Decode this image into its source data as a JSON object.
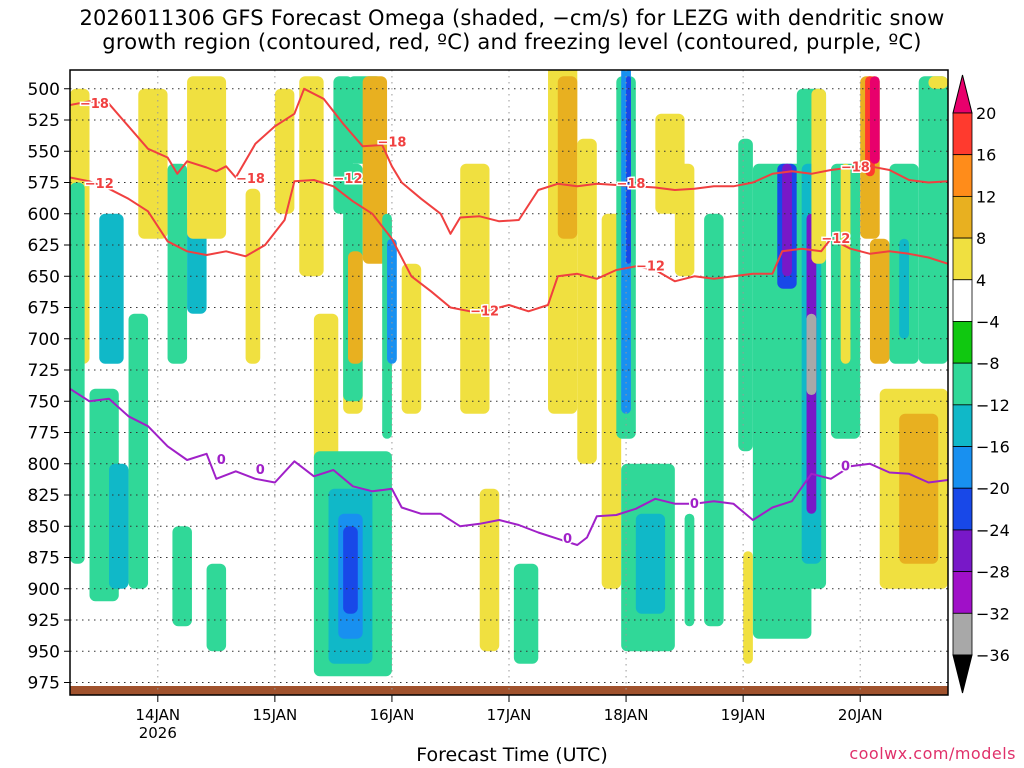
{
  "chart_data": {
    "type": "time-height",
    "title_line1": "2026011306 GFS Forecast Omega (shaded, −cm/s) for LEZG with dendritic snow",
    "title_line2": "growth region (contoured, red, ºC) and freezing level (contoured, purple, ºC)",
    "xlabel": "Forecast Time (UTC)",
    "credit": "coolwx.com/models",
    "x_range_hours": [
      0,
      180
    ],
    "x_ticks": [
      {
        "label": "14JAN",
        "hour": 18,
        "sublabel": "2026"
      },
      {
        "label": "15JAN",
        "hour": 42,
        "sublabel": ""
      },
      {
        "label": "16JAN",
        "hour": 66,
        "sublabel": ""
      },
      {
        "label": "17JAN",
        "hour": 90,
        "sublabel": ""
      },
      {
        "label": "18JAN",
        "hour": 114,
        "sublabel": ""
      },
      {
        "label": "19JAN",
        "hour": 138,
        "sublabel": ""
      },
      {
        "label": "20JAN",
        "hour": 162,
        "sublabel": ""
      }
    ],
    "y_range_hpa": [
      985,
      485
    ],
    "y_ticks": [
      500,
      525,
      550,
      575,
      600,
      625,
      650,
      675,
      700,
      725,
      750,
      775,
      800,
      825,
      850,
      875,
      900,
      925,
      950,
      975
    ],
    "colorbar": {
      "labels": [
        "20",
        "16",
        "12",
        "8",
        "4",
        "−4",
        "−8",
        "−12",
        "−16",
        "−20",
        "−24",
        "−28",
        "−32",
        "−36"
      ],
      "colors": [
        "#e8006c",
        "#ff3a2e",
        "#ff8c1a",
        "#e8b020",
        "#f0e040",
        "#ffffff",
        "#10c810",
        "#30d898",
        "#10b8c8",
        "#1890f0",
        "#1848e8",
        "#7818c8",
        "#a010c8",
        "#a8a8a8",
        "#000000"
      ]
    },
    "omega_cells": [
      {
        "h0": 0,
        "h1": 4,
        "p0": 500,
        "p1": 720,
        "v": 6
      },
      {
        "h0": 0,
        "h1": 3,
        "p0": 575,
        "p1": 880,
        "v": -8
      },
      {
        "h0": 4,
        "h1": 10,
        "p0": 740,
        "p1": 910,
        "v": -10
      },
      {
        "h0": 6,
        "h1": 11,
        "p0": 600,
        "p1": 720,
        "v": -12
      },
      {
        "h0": 8,
        "h1": 12,
        "p0": 800,
        "p1": 900,
        "v": -14
      },
      {
        "h0": 12,
        "h1": 16,
        "p0": 680,
        "p1": 900,
        "v": -8
      },
      {
        "h0": 14,
        "h1": 20,
        "p0": 500,
        "p1": 620,
        "v": 6
      },
      {
        "h0": 20,
        "h1": 24,
        "p0": 560,
        "p1": 720,
        "v": -8
      },
      {
        "h0": 24,
        "h1": 28,
        "p0": 600,
        "p1": 680,
        "v": -12
      },
      {
        "h0": 21,
        "h1": 25,
        "p0": 850,
        "p1": 930,
        "v": -8
      },
      {
        "h0": 24,
        "h1": 32,
        "p0": 490,
        "p1": 620,
        "v": 6
      },
      {
        "h0": 28,
        "h1": 32,
        "p0": 880,
        "p1": 950,
        "v": -8
      },
      {
        "h0": 36,
        "h1": 39,
        "p0": 580,
        "p1": 720,
        "v": 6
      },
      {
        "h0": 42,
        "h1": 46,
        "p0": 500,
        "p1": 600,
        "v": 6
      },
      {
        "h0": 47,
        "h1": 52,
        "p0": 490,
        "p1": 650,
        "v": 6
      },
      {
        "h0": 50,
        "h1": 55,
        "p0": 680,
        "p1": 800,
        "v": 6
      },
      {
        "h0": 54,
        "h1": 58,
        "p0": 490,
        "p1": 600,
        "v": -8
      },
      {
        "h0": 56,
        "h1": 60,
        "p0": 600,
        "p1": 760,
        "v": 6
      },
      {
        "h0": 57,
        "h1": 64,
        "p0": 490,
        "p1": 560,
        "v": -8
      },
      {
        "h0": 56,
        "h1": 60,
        "p0": 560,
        "p1": 750,
        "v": -8
      },
      {
        "h0": 57,
        "h1": 60,
        "p0": 630,
        "p1": 720,
        "v": 10
      },
      {
        "h0": 60,
        "h1": 65,
        "p0": 490,
        "p1": 640,
        "v": 10
      },
      {
        "h0": 64,
        "h1": 66,
        "p0": 600,
        "p1": 780,
        "v": -8
      },
      {
        "h0": 65,
        "h1": 67,
        "p0": 620,
        "p1": 720,
        "v": -16
      },
      {
        "h0": 68,
        "h1": 72,
        "p0": 640,
        "p1": 760,
        "v": 6
      },
      {
        "h0": 50,
        "h1": 66,
        "p0": 790,
        "p1": 970,
        "v": -8
      },
      {
        "h0": 53,
        "h1": 62,
        "p0": 820,
        "p1": 960,
        "v": -12
      },
      {
        "h0": 55,
        "h1": 60,
        "p0": 840,
        "p1": 940,
        "v": -16
      },
      {
        "h0": 56,
        "h1": 59,
        "p0": 850,
        "p1": 920,
        "v": -22
      },
      {
        "h0": 80,
        "h1": 86,
        "p0": 560,
        "p1": 760,
        "v": 6
      },
      {
        "h0": 84,
        "h1": 88,
        "p0": 820,
        "p1": 950,
        "v": 6
      },
      {
        "h0": 91,
        "h1": 96,
        "p0": 880,
        "p1": 960,
        "v": -8
      },
      {
        "h0": 98,
        "h1": 104,
        "p0": 480,
        "p1": 760,
        "v": 6
      },
      {
        "h0": 100,
        "h1": 104,
        "p0": 490,
        "p1": 620,
        "v": 10
      },
      {
        "h0": 104,
        "h1": 108,
        "p0": 540,
        "p1": 800,
        "v": 6
      },
      {
        "h0": 109,
        "h1": 113,
        "p0": 600,
        "p1": 900,
        "v": 6
      },
      {
        "h0": 112,
        "h1": 116,
        "p0": 490,
        "p1": 780,
        "v": -8
      },
      {
        "h0": 113,
        "h1": 115,
        "p0": 480,
        "p1": 760,
        "v": -16
      },
      {
        "h0": 114,
        "h1": 115,
        "p0": 490,
        "p1": 640,
        "v": -22
      },
      {
        "h0": 113,
        "h1": 124,
        "p0": 800,
        "p1": 950,
        "v": -8
      },
      {
        "h0": 116,
        "h1": 122,
        "p0": 840,
        "p1": 920,
        "v": -12
      },
      {
        "h0": 120,
        "h1": 126,
        "p0": 520,
        "p1": 600,
        "v": 6
      },
      {
        "h0": 124,
        "h1": 128,
        "p0": 560,
        "p1": 650,
        "v": 6
      },
      {
        "h0": 126,
        "h1": 128,
        "p0": 840,
        "p1": 930,
        "v": -8
      },
      {
        "h0": 130,
        "h1": 134,
        "p0": 600,
        "p1": 930,
        "v": -8
      },
      {
        "h0": 137,
        "h1": 140,
        "p0": 540,
        "p1": 790,
        "v": -8
      },
      {
        "h0": 138,
        "h1": 140,
        "p0": 870,
        "p1": 960,
        "v": 6
      },
      {
        "h0": 140,
        "h1": 152,
        "p0": 560,
        "p1": 940,
        "v": -8
      },
      {
        "h0": 142,
        "h1": 150,
        "p0": 600,
        "p1": 820,
        "v": -10
      },
      {
        "h0": 145,
        "h1": 149,
        "p0": 560,
        "p1": 660,
        "v": -20
      },
      {
        "h0": 146,
        "h1": 148,
        "p0": 560,
        "p1": 650,
        "v": -26
      },
      {
        "h0": 149,
        "h1": 155,
        "p0": 500,
        "p1": 900,
        "v": -8
      },
      {
        "h0": 150,
        "h1": 154,
        "p0": 560,
        "p1": 880,
        "v": -12
      },
      {
        "h0": 151,
        "h1": 153,
        "p0": 600,
        "p1": 840,
        "v": -26
      },
      {
        "h0": 151,
        "h1": 153,
        "p0": 680,
        "p1": 745,
        "v": -34
      },
      {
        "h0": 152,
        "h1": 155,
        "p0": 500,
        "p1": 640,
        "v": 6
      },
      {
        "h0": 156,
        "h1": 162,
        "p0": 560,
        "p1": 780,
        "v": -8
      },
      {
        "h0": 158,
        "h1": 160,
        "p0": 560,
        "p1": 720,
        "v": 6
      },
      {
        "h0": 162,
        "h1": 166,
        "p0": 490,
        "p1": 620,
        "v": 10
      },
      {
        "h0": 163,
        "h1": 165,
        "p0": 490,
        "p1": 570,
        "v": 18
      },
      {
        "h0": 164,
        "h1": 166,
        "p0": 490,
        "p1": 560,
        "v": 22
      },
      {
        "h0": 164,
        "h1": 168,
        "p0": 620,
        "p1": 720,
        "v": 10
      },
      {
        "h0": 168,
        "h1": 174,
        "p0": 560,
        "p1": 720,
        "v": -8
      },
      {
        "h0": 170,
        "h1": 172,
        "p0": 620,
        "p1": 700,
        "v": -12
      },
      {
        "h0": 174,
        "h1": 180,
        "p0": 490,
        "p1": 720,
        "v": -8
      },
      {
        "h0": 166,
        "h1": 180,
        "p0": 740,
        "p1": 900,
        "v": 6
      },
      {
        "h0": 170,
        "h1": 178,
        "p0": 760,
        "p1": 880,
        "v": 10
      },
      {
        "h0": 176,
        "h1": 180,
        "p0": 490,
        "p1": 500,
        "v": 6
      }
    ],
    "contours": [
      {
        "name": "dgz-upper",
        "level": "−18",
        "color": "#f04040",
        "points": [
          [
            0,
            513
          ],
          [
            4,
            510
          ],
          [
            8,
            512
          ],
          [
            12,
            530
          ],
          [
            16,
            548
          ],
          [
            20,
            555
          ],
          [
            22,
            568
          ],
          [
            24,
            558
          ],
          [
            28,
            563
          ],
          [
            30,
            566
          ],
          [
            32,
            562
          ],
          [
            34,
            571
          ],
          [
            38,
            544
          ],
          [
            42,
            530
          ],
          [
            46,
            520
          ],
          [
            48,
            500
          ],
          [
            52,
            508
          ],
          [
            56,
            528
          ],
          [
            60,
            546
          ],
          [
            64,
            545
          ],
          [
            66,
            562
          ],
          [
            68,
            575
          ],
          [
            72,
            588
          ],
          [
            76,
            600
          ],
          [
            78,
            616
          ],
          [
            80,
            603
          ],
          [
            84,
            602
          ],
          [
            88,
            606
          ],
          [
            92,
            605
          ],
          [
            96,
            581
          ],
          [
            100,
            576
          ],
          [
            104,
            578
          ],
          [
            108,
            576
          ],
          [
            112,
            577
          ],
          [
            116,
            578
          ],
          [
            120,
            579
          ],
          [
            124,
            581
          ],
          [
            128,
            580
          ],
          [
            132,
            578
          ],
          [
            136,
            578
          ],
          [
            140,
            575
          ],
          [
            144,
            568
          ],
          [
            148,
            566
          ],
          [
            152,
            568
          ],
          [
            156,
            565
          ],
          [
            160,
            563
          ],
          [
            164,
            562
          ],
          [
            168,
            565
          ],
          [
            172,
            573
          ],
          [
            176,
            575
          ],
          [
            180,
            574
          ]
        ],
        "labels": [
          {
            "h": 5,
            "p": 512
          },
          {
            "h": 37,
            "p": 572
          },
          {
            "h": 66,
            "p": 543
          },
          {
            "h": 115,
            "p": 576
          },
          {
            "h": 161,
            "p": 563
          }
        ]
      },
      {
        "name": "dgz-lower",
        "level": "−12",
        "color": "#f04040",
        "points": [
          [
            0,
            571
          ],
          [
            4,
            574
          ],
          [
            8,
            580
          ],
          [
            12,
            588
          ],
          [
            16,
            598
          ],
          [
            20,
            622
          ],
          [
            24,
            630
          ],
          [
            28,
            633
          ],
          [
            32,
            630
          ],
          [
            36,
            634
          ],
          [
            40,
            625
          ],
          [
            44,
            605
          ],
          [
            46,
            574
          ],
          [
            50,
            573
          ],
          [
            54,
            578
          ],
          [
            58,
            590
          ],
          [
            62,
            600
          ],
          [
            66,
            620
          ],
          [
            70,
            650
          ],
          [
            74,
            662
          ],
          [
            78,
            675
          ],
          [
            82,
            678
          ],
          [
            86,
            677
          ],
          [
            90,
            673
          ],
          [
            94,
            678
          ],
          [
            98,
            673
          ],
          [
            100,
            650
          ],
          [
            104,
            648
          ],
          [
            108,
            652
          ],
          [
            112,
            645
          ],
          [
            116,
            642
          ],
          [
            120,
            645
          ],
          [
            124,
            654
          ],
          [
            128,
            650
          ],
          [
            132,
            652
          ],
          [
            136,
            650
          ],
          [
            140,
            648
          ],
          [
            144,
            648
          ],
          [
            146,
            630
          ],
          [
            150,
            628
          ],
          [
            154,
            630
          ],
          [
            156,
            620
          ],
          [
            160,
            628
          ],
          [
            164,
            632
          ],
          [
            168,
            630
          ],
          [
            172,
            632
          ],
          [
            176,
            635
          ],
          [
            180,
            640
          ]
        ],
        "labels": [
          {
            "h": 6,
            "p": 576
          },
          {
            "h": 57,
            "p": 572
          },
          {
            "h": 85,
            "p": 678
          },
          {
            "h": 119,
            "p": 642
          },
          {
            "h": 157,
            "p": 620
          }
        ]
      },
      {
        "name": "freezing-level",
        "level": "0",
        "color": "#a020c8",
        "points": [
          [
            0,
            740
          ],
          [
            4,
            750
          ],
          [
            8,
            748
          ],
          [
            12,
            762
          ],
          [
            16,
            770
          ],
          [
            20,
            786
          ],
          [
            24,
            797
          ],
          [
            28,
            792
          ],
          [
            30,
            812
          ],
          [
            34,
            806
          ],
          [
            38,
            812
          ],
          [
            42,
            815
          ],
          [
            46,
            798
          ],
          [
            50,
            810
          ],
          [
            54,
            805
          ],
          [
            58,
            818
          ],
          [
            62,
            822
          ],
          [
            66,
            820
          ],
          [
            68,
            835
          ],
          [
            72,
            840
          ],
          [
            76,
            840
          ],
          [
            80,
            850
          ],
          [
            84,
            848
          ],
          [
            88,
            845
          ],
          [
            92,
            849
          ],
          [
            96,
            855
          ],
          [
            100,
            860
          ],
          [
            104,
            865
          ],
          [
            106,
            859
          ],
          [
            108,
            842
          ],
          [
            112,
            841
          ],
          [
            116,
            836
          ],
          [
            120,
            828
          ],
          [
            124,
            832
          ],
          [
            128,
            832
          ],
          [
            132,
            830
          ],
          [
            136,
            832
          ],
          [
            140,
            845
          ],
          [
            144,
            835
          ],
          [
            148,
            830
          ],
          [
            152,
            808
          ],
          [
            156,
            812
          ],
          [
            160,
            802
          ],
          [
            164,
            800
          ],
          [
            168,
            807
          ],
          [
            172,
            808
          ],
          [
            176,
            815
          ],
          [
            180,
            813
          ]
        ],
        "labels": [
          {
            "h": 31,
            "p": 797
          },
          {
            "h": 39,
            "p": 805
          },
          {
            "h": 102,
            "p": 860
          },
          {
            "h": 128,
            "p": 832
          },
          {
            "h": 159,
            "p": 802
          }
        ]
      }
    ]
  }
}
